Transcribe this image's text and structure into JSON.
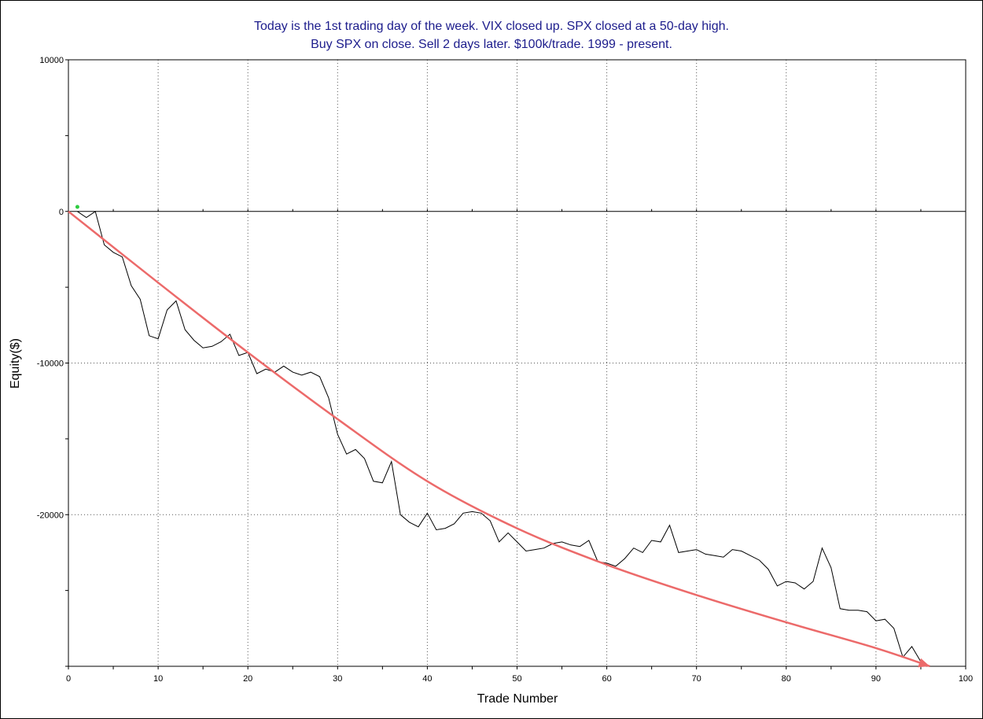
{
  "chart_data": {
    "type": "line",
    "title": "Today is the 1st trading day of the week. VIX closed up. SPX closed at a 50-day high.",
    "subtitle": "Buy SPX on close. Sell 2 days later. $100k/trade. 1999 - present.",
    "xlabel": "Trade Number",
    "ylabel": "Equity($)",
    "xlim": [
      0,
      100
    ],
    "ylim": [
      -30000,
      10000
    ],
    "x_ticks": [
      0,
      10,
      20,
      30,
      40,
      50,
      60,
      70,
      80,
      90,
      100
    ],
    "y_ticks": [
      10000,
      0,
      -10000,
      -20000
    ],
    "grid": true,
    "series": [
      {
        "x": [
          1,
          2,
          3,
          4,
          5,
          6,
          7,
          8,
          9,
          10,
          11,
          12,
          13,
          14,
          15,
          16,
          17,
          18,
          19,
          20,
          21,
          22,
          23,
          24,
          25,
          26,
          27,
          28,
          29,
          30,
          31,
          32,
          33,
          34,
          35,
          36,
          37,
          38,
          39,
          40,
          41,
          42,
          43,
          44,
          45,
          46,
          47,
          48,
          49,
          50,
          51,
          52,
          53,
          54,
          55,
          56,
          57,
          58,
          59,
          60,
          61,
          62,
          63,
          64,
          65,
          66,
          67,
          68,
          69,
          70,
          71,
          72,
          73,
          74,
          75,
          76,
          77,
          78,
          79,
          80,
          81,
          82,
          83,
          84,
          85,
          86,
          87,
          88,
          89,
          90,
          91,
          92,
          93,
          94,
          95,
          96
        ],
        "y": [
          0,
          -400,
          0,
          -2200,
          -2700,
          -3000,
          -4900,
          -5800,
          -8200,
          -8400,
          -6500,
          -5900,
          -7800,
          -8500,
          -9000,
          -8900,
          -8600,
          -8100,
          -9500,
          -9300,
          -10700,
          -10400,
          -10600,
          -10200,
          -10600,
          -10800,
          -10600,
          -10900,
          -12300,
          -14700,
          -16000,
          -15700,
          -16300,
          -17800,
          -17900,
          -16500,
          -20000,
          -20500,
          -20800,
          -19900,
          -21000,
          -20900,
          -20600,
          -19900,
          -19800,
          -19900,
          -20400,
          -21800,
          -21200,
          -21800,
          -22400,
          -22300,
          -22200,
          -21900,
          -21800,
          -22000,
          -22100,
          -21700,
          -23100,
          -23200,
          -23400,
          -22900,
          -22200,
          -22500,
          -21700,
          -21800,
          -20700,
          -22500,
          -22400,
          -22300,
          -22600,
          -22700,
          -22800,
          -22300,
          -22400,
          -22700,
          -23000,
          -23600,
          -24700,
          -24400,
          -24500,
          -24900,
          -24400,
          -22200,
          -23500,
          -26200,
          -26300,
          -26300,
          -26400,
          -27000,
          -26900,
          -27500,
          -29400,
          -28700,
          -29700,
          -30000
        ]
      },
      {
        "x": [
          0,
          10,
          20,
          30,
          40,
          50,
          60,
          70,
          80,
          90,
          96
        ],
        "y": [
          0,
          -4700,
          -9300,
          -13700,
          -17800,
          -20900,
          -23300,
          -25300,
          -27100,
          -28800,
          -30000
        ]
      }
    ],
    "markers": [
      {
        "x": 1,
        "y": 300,
        "color": "#2ecc40"
      }
    ]
  },
  "colors": {
    "title": "#1c1c8c",
    "equity_line": "#000000",
    "trend_arrow": "#ec6a6a",
    "start_marker": "#2ecc40"
  }
}
